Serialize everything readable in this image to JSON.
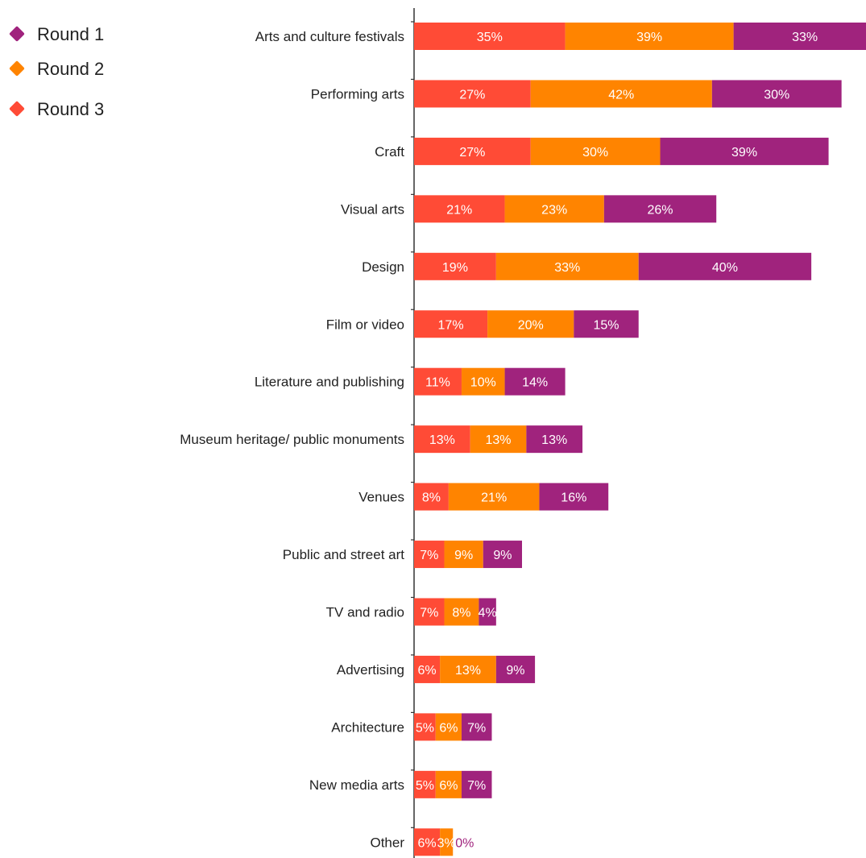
{
  "chart_data": {
    "type": "bar",
    "orientation": "horizontal",
    "stacked": true,
    "title": "",
    "xlabel": "",
    "ylabel": "",
    "grid": false,
    "legend_position": "top-left",
    "categories": [
      "Arts and culture festivals",
      "Performing arts",
      "Craft",
      "Visual arts",
      "Design",
      "Film or video",
      "Literature and publishing",
      "Museum heritage/ public monuments",
      "Venues",
      "Public and street art",
      "TV and radio",
      "Advertising",
      "Architecture",
      "New media arts",
      "Other"
    ],
    "series": [
      {
        "name": "Round 3",
        "color": "#ff4b36",
        "values": [
          35,
          27,
          27,
          21,
          19,
          17,
          11,
          13,
          8,
          7,
          7,
          6,
          5,
          5,
          6
        ]
      },
      {
        "name": "Round 2",
        "color": "#ff8400",
        "values": [
          39,
          42,
          30,
          23,
          33,
          20,
          10,
          13,
          21,
          9,
          8,
          13,
          6,
          6,
          3
        ]
      },
      {
        "name": "Round 1",
        "color": "#a0237d",
        "values": [
          33,
          30,
          39,
          26,
          40,
          15,
          14,
          13,
          16,
          9,
          4,
          9,
          7,
          7,
          0
        ]
      }
    ],
    "legend_order": [
      "Round 1",
      "Round 2",
      "Round 3"
    ],
    "value_suffix": "%"
  }
}
